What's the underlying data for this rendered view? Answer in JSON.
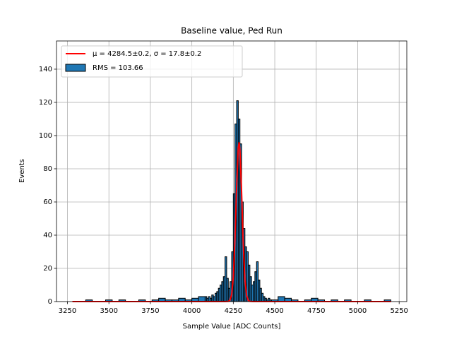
{
  "chart_data": {
    "type": "histogram",
    "title": "Baseline value, Ped Run",
    "x_label": "Sample Value [ADC Counts]",
    "y_label": "Events",
    "xlim": [
      3184,
      5296
    ],
    "ylim": [
      0,
      157
    ],
    "xticks": [
      3250,
      3500,
      3750,
      4000,
      4250,
      4500,
      4750,
      5000,
      5250
    ],
    "yticks": [
      0,
      20,
      40,
      60,
      80,
      100,
      120,
      140
    ],
    "grid": true,
    "legend": "upper left",
    "series": [
      {
        "name": "μ = 4284.5±0.2, σ = 17.8±0.2",
        "type": "line",
        "color": "#ff0000",
        "x": [
          3280,
          4200,
          4220,
          4230,
          4240,
          4250,
          4260,
          4270,
          4280,
          4285,
          4290,
          4300,
          4310,
          4320,
          4330,
          4340,
          4350,
          4370,
          5200
        ],
        "values": [
          0,
          0,
          0.1,
          0.9,
          4.2,
          14.7,
          37.2,
          68.9,
          93.0,
          96,
          91.5,
          65.7,
          34.4,
          13.1,
          3.7,
          0.7,
          0.1,
          0,
          0
        ]
      },
      {
        "name": "RMS = 103.66",
        "type": "histogram",
        "color": "#1f77b4",
        "bins": [
          3280,
          3320,
          3360,
          3400,
          3440,
          3480,
          3520,
          3560,
          3600,
          3640,
          3680,
          3720,
          3760,
          3800,
          3840,
          3880,
          3920,
          3960,
          4000,
          4040,
          4080,
          4090,
          4100,
          4110,
          4120,
          4130,
          4140,
          4150,
          4160,
          4170,
          4180,
          4190,
          4200,
          4210,
          4220,
          4230,
          4240,
          4250,
          4260,
          4270,
          4280,
          4290,
          4300,
          4310,
          4320,
          4330,
          4340,
          4350,
          4360,
          4370,
          4380,
          4390,
          4400,
          4410,
          4420,
          4430,
          4440,
          4450,
          4460,
          4470,
          4480,
          4520,
          4560,
          4600,
          4640,
          4680,
          4720,
          4760,
          4800,
          4840,
          4880,
          4920,
          4960,
          5000,
          5040,
          5080,
          5120,
          5160,
          5200
        ],
        "values": [
          0,
          0,
          1,
          0,
          0,
          1,
          0,
          1,
          0,
          0,
          1,
          0,
          1,
          2,
          1,
          1,
          2,
          1,
          2,
          3,
          3,
          2,
          3,
          2,
          4,
          3,
          5,
          6,
          8,
          10,
          12,
          15,
          27,
          14,
          8,
          12,
          30,
          65,
          107,
          121,
          110,
          95,
          60,
          44,
          33,
          30,
          22,
          15,
          10,
          12,
          18,
          24,
          13,
          8,
          5,
          3,
          2,
          1,
          2,
          1,
          1,
          3,
          2,
          1,
          0,
          1,
          2,
          1,
          0,
          1,
          0,
          1,
          0,
          0,
          1,
          0,
          0,
          1
        ]
      }
    ]
  }
}
